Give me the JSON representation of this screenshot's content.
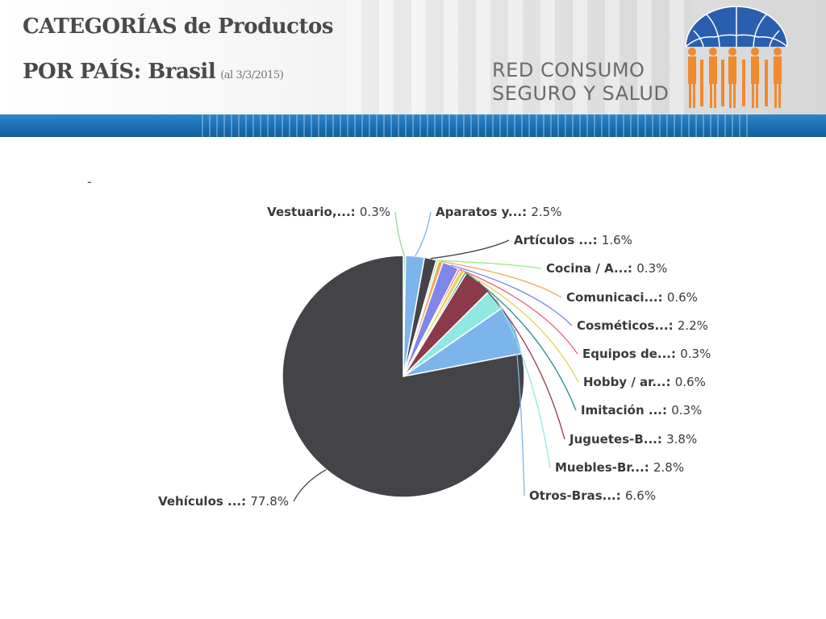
{
  "header": {
    "title_line1": "CATEGORÍAS de Productos",
    "title_line2": "POR PAÍS: Brasil",
    "date_note": "(al 3/3/2015)",
    "brand_line1": "RED CONSUMO",
    "brand_line2": "SEGURO Y SALUD",
    "logo": "umbrella-people-logo"
  },
  "colors": {
    "title_text": "#4a4a4a",
    "stripe_blue": "#1a6fb3",
    "logo_blue": "#2a5fb0",
    "logo_orange": "#f08a2e"
  },
  "chart_data": {
    "type": "pie",
    "title": "-",
    "start_angle_deg": 0,
    "direction": "clockwise",
    "slices": [
      {
        "label": "Vestuario,...",
        "value": 0.3,
        "display": "0.3%",
        "color": "#9bd39b"
      },
      {
        "label": "Aparatos y...",
        "value": 2.5,
        "display": "2.5%",
        "color": "#7cb5ec"
      },
      {
        "label": "Artículos ...",
        "value": 1.6,
        "display": "1.6%",
        "color": "#434348"
      },
      {
        "label": "Cocina / A...",
        "value": 0.3,
        "display": "0.3%",
        "color": "#90ed7d"
      },
      {
        "label": "Comunicaci...",
        "value": 0.6,
        "display": "0.6%",
        "color": "#f7a35c"
      },
      {
        "label": "Cosméticos...",
        "value": 2.2,
        "display": "2.2%",
        "color": "#8085e9"
      },
      {
        "label": "Equipos de...",
        "value": 0.3,
        "display": "0.3%",
        "color": "#f15c80"
      },
      {
        "label": "Hobby / ar...",
        "value": 0.6,
        "display": "0.6%",
        "color": "#e4d354"
      },
      {
        "label": "Imitación ...",
        "value": 0.3,
        "display": "0.3%",
        "color": "#2b908f"
      },
      {
        "label": "Juguetes-B...",
        "value": 3.8,
        "display": "3.8%",
        "color": "#8b3a4a"
      },
      {
        "label": "Muebles-Br...",
        "value": 2.8,
        "display": "2.8%",
        "color": "#91e8e1"
      },
      {
        "label": "Otros-Bras...",
        "value": 6.6,
        "display": "6.6%",
        "color": "#7cb5ec"
      },
      {
        "label": "Vehículos ...",
        "value": 77.8,
        "display": "77.8%",
        "color": "#434348"
      }
    ]
  }
}
